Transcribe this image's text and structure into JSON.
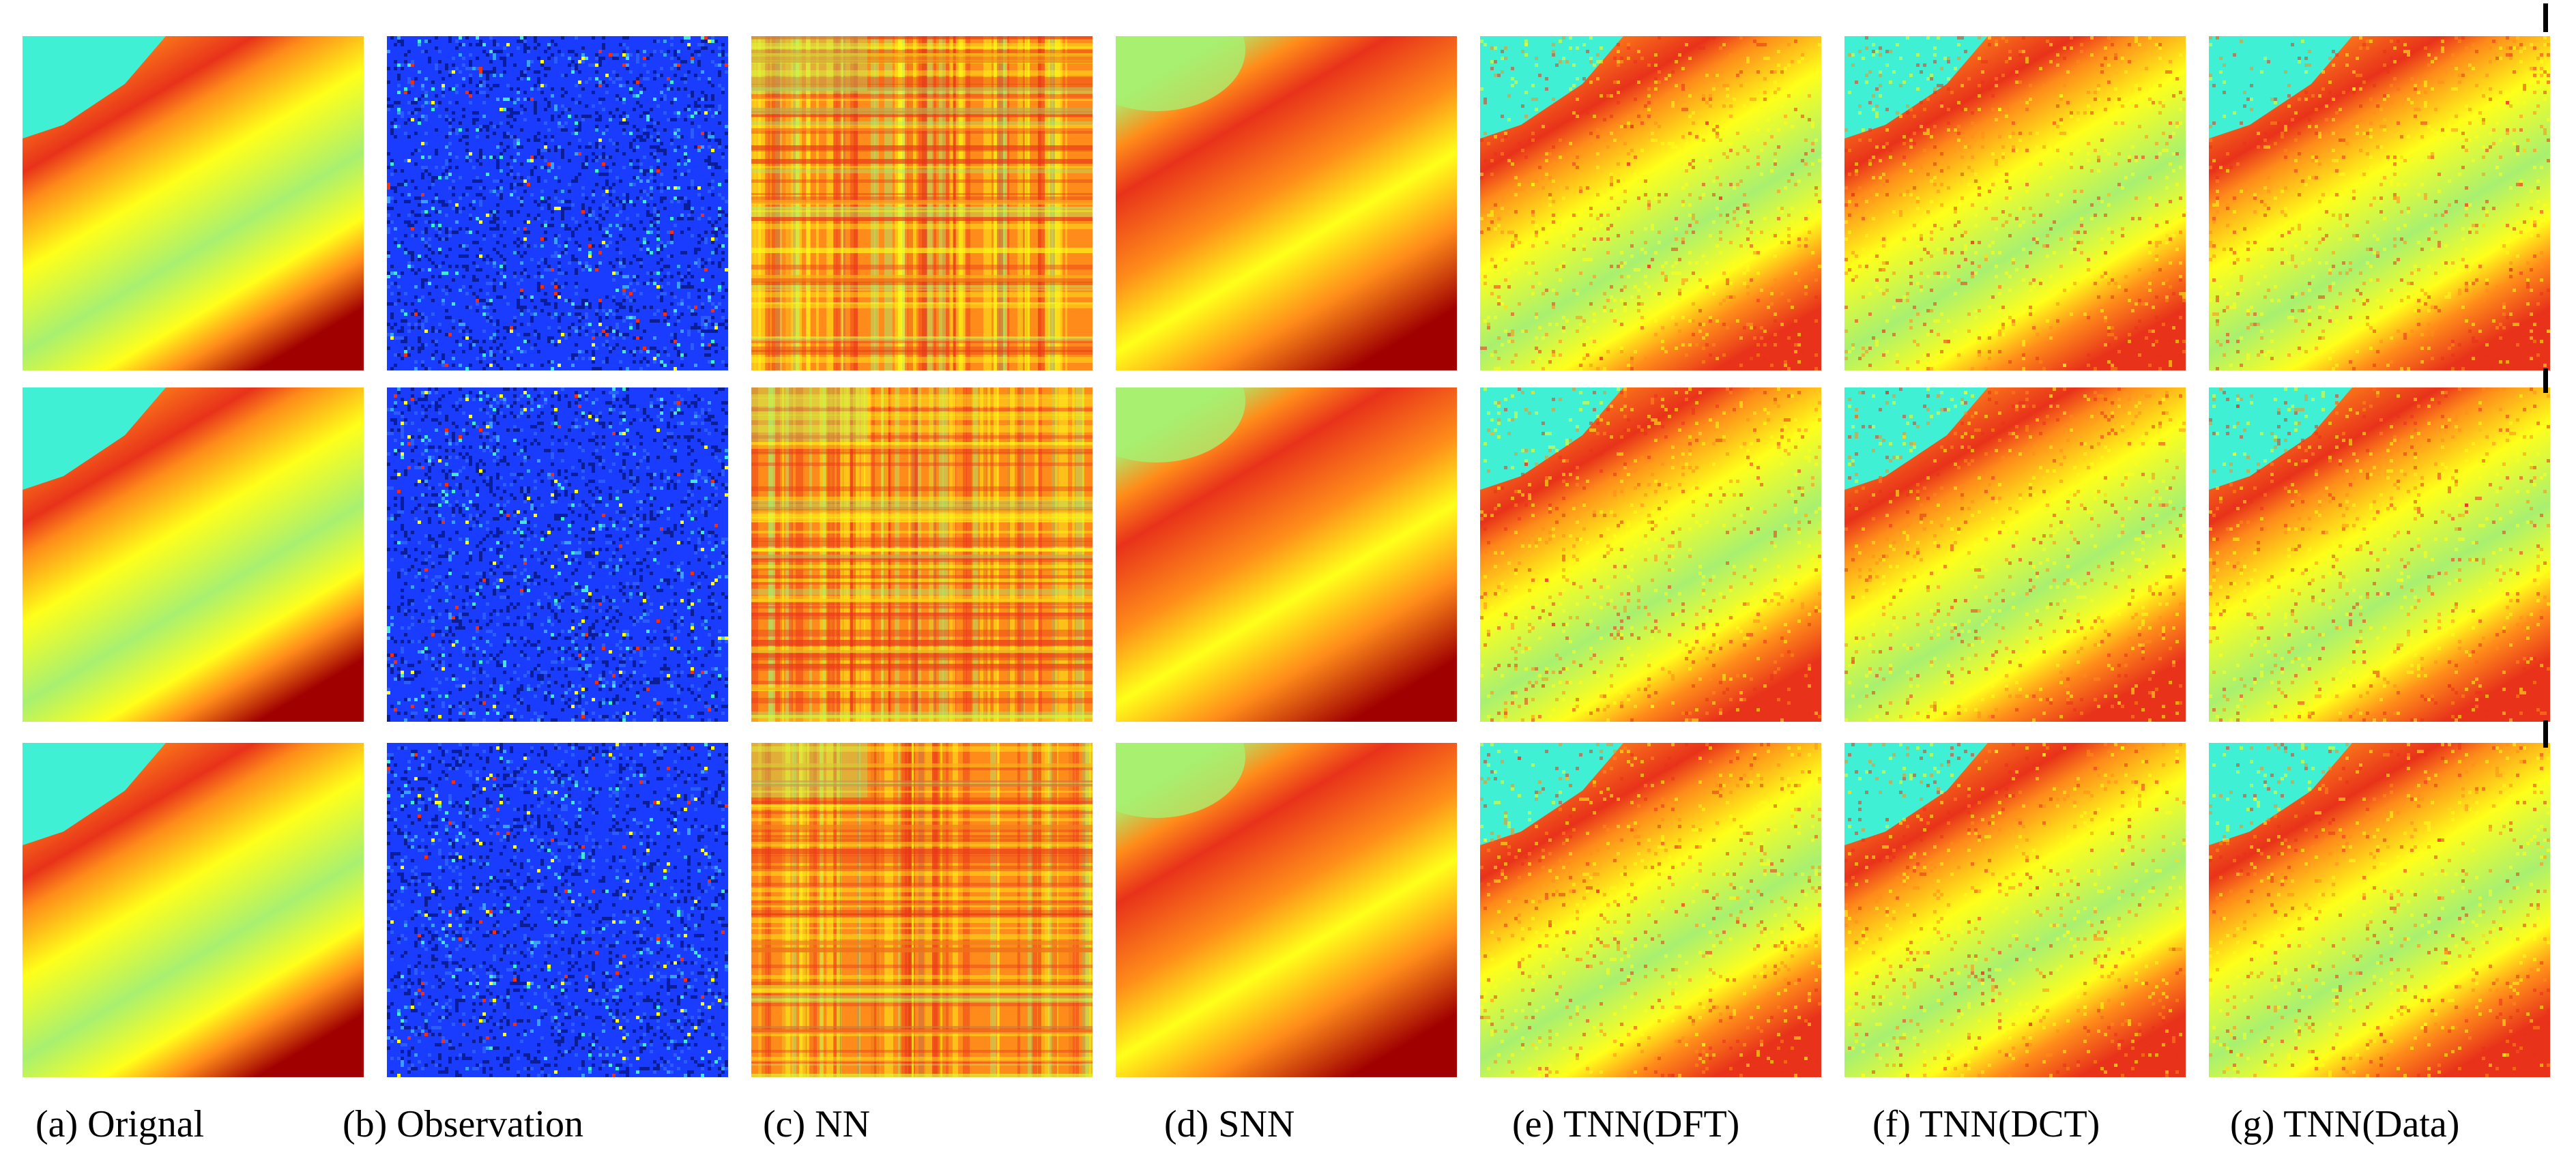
{
  "figure": {
    "rows": 3,
    "columns": [
      {
        "id": "original",
        "caption": "(a) Orignal",
        "style": "original"
      },
      {
        "id": "observation",
        "caption": "(b) Observation",
        "style": "observation"
      },
      {
        "id": "nn",
        "caption": "(c) NN",
        "style": "nn"
      },
      {
        "id": "snn",
        "caption": "(d) SNN",
        "style": "snn"
      },
      {
        "id": "tnn-dft",
        "caption": "(e) TNN(DFT)",
        "style": "tnn"
      },
      {
        "id": "tnn-dct",
        "caption": "(f) TNN(DCT)",
        "style": "tnn"
      },
      {
        "id": "tnn-data",
        "caption": "(g) TNN(Data)",
        "style": "tnn"
      }
    ],
    "colormap": {
      "cyan": "#3ff0d4",
      "light-green": "#a8f070",
      "yellow": "#ffff1a",
      "orange": "#ff8c1a",
      "red": "#e8321a",
      "dark-red": "#a00000",
      "blue": "#1a3cff",
      "dark-blue": "#0a1e9a"
    }
  }
}
